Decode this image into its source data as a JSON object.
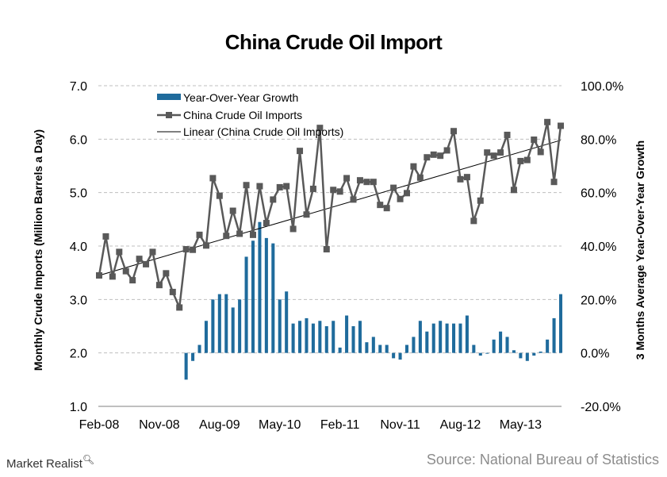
{
  "chart_data": {
    "type": "bar+line",
    "title": "China Crude Oil Import",
    "ylabel_left": "Monthly Crude Imports (Million Barrels a Day)",
    "ylabel_right": "3 Months Average Year-Over-Year  Growth",
    "ylim_left": [
      1.0,
      7.0
    ],
    "ylim_right": [
      -20.0,
      100.0
    ],
    "yticks_left": [
      "7.0",
      "6.0",
      "5.0",
      "4.0",
      "3.0",
      "2.0",
      "1.0"
    ],
    "yticks_right": [
      "100.0%",
      "80.0%",
      "60.0%",
      "40.0%",
      "20.0%",
      "0.0%",
      "-20.0%"
    ],
    "xticks": [
      "Feb-08",
      "Nov-08",
      "Aug-09",
      "May-10",
      "Feb-11",
      "Nov-11",
      "Aug-12",
      "May-13"
    ],
    "xtick_index": [
      0,
      9,
      18,
      27,
      36,
      45,
      54,
      63
    ],
    "grid": "horizontal dashed",
    "legend_position": "top-left",
    "legend": [
      "Year-Over-Year Growth",
      "China Crude Oil Imports",
      "Linear (China Crude Oil Imports)"
    ],
    "colors": {
      "bars": "#1f6b9c",
      "line": "#595959",
      "markers": "#595959",
      "trend": "#000000"
    },
    "series": [
      {
        "name": "China Crude Oil Imports",
        "kind": "line",
        "axis": "left",
        "values": [
          3.45,
          4.18,
          3.43,
          3.89,
          3.53,
          3.36,
          3.76,
          3.66,
          3.89,
          3.27,
          3.49,
          3.14,
          2.85,
          3.94,
          3.93,
          4.21,
          4.01,
          5.27,
          4.94,
          4.19,
          4.66,
          4.23,
          5.14,
          4.21,
          5.12,
          4.43,
          4.87,
          5.1,
          5.12,
          4.32,
          5.78,
          4.59,
          5.07,
          6.21,
          3.94,
          5.05,
          5.02,
          5.27,
          4.87,
          5.23,
          5.2,
          5.2,
          4.77,
          4.71,
          5.09,
          4.88,
          4.99,
          5.49,
          5.28,
          5.66,
          5.71,
          5.69,
          5.79,
          6.15,
          5.25,
          5.29,
          4.47,
          4.85,
          5.75,
          5.69,
          5.75,
          6.08,
          5.05,
          5.59,
          5.61,
          5.99,
          5.76,
          6.32,
          5.2,
          6.25
        ]
      },
      {
        "name": "Year-Over-Year Growth",
        "kind": "bar",
        "axis": "right",
        "values": [
          null,
          null,
          null,
          null,
          null,
          null,
          null,
          null,
          null,
          null,
          null,
          null,
          null,
          -10.0,
          -3.0,
          3.0,
          12.0,
          20.0,
          22.0,
          22.0,
          17.0,
          20.0,
          36.0,
          42.0,
          49.0,
          43.0,
          41.0,
          20.0,
          23.0,
          11.0,
          12.0,
          13.0,
          11.0,
          12.0,
          10.0,
          12.0,
          2.0,
          14.0,
          10.0,
          12.0,
          4.0,
          6.0,
          3.0,
          3.0,
          -2.0,
          -2.5,
          3.0,
          6.0,
          12.0,
          8.0,
          11.0,
          12.0,
          11.0,
          11.0,
          11.0,
          14.0,
          3.0,
          -1.0,
          0.0,
          5.0,
          8.0,
          6.0,
          1.0,
          -2.0,
          -3.0,
          -1.0,
          0.5,
          5.0,
          13.0,
          22.0
        ]
      },
      {
        "name": "Linear (China Crude Oil Imports)",
        "kind": "trend",
        "axis": "left",
        "start": 3.45,
        "end": 5.98
      }
    ]
  },
  "footer": {
    "brand": "Market Realist",
    "brand_icon": "magnifier-icon",
    "source": "Source: National Bureau of Statistics"
  }
}
